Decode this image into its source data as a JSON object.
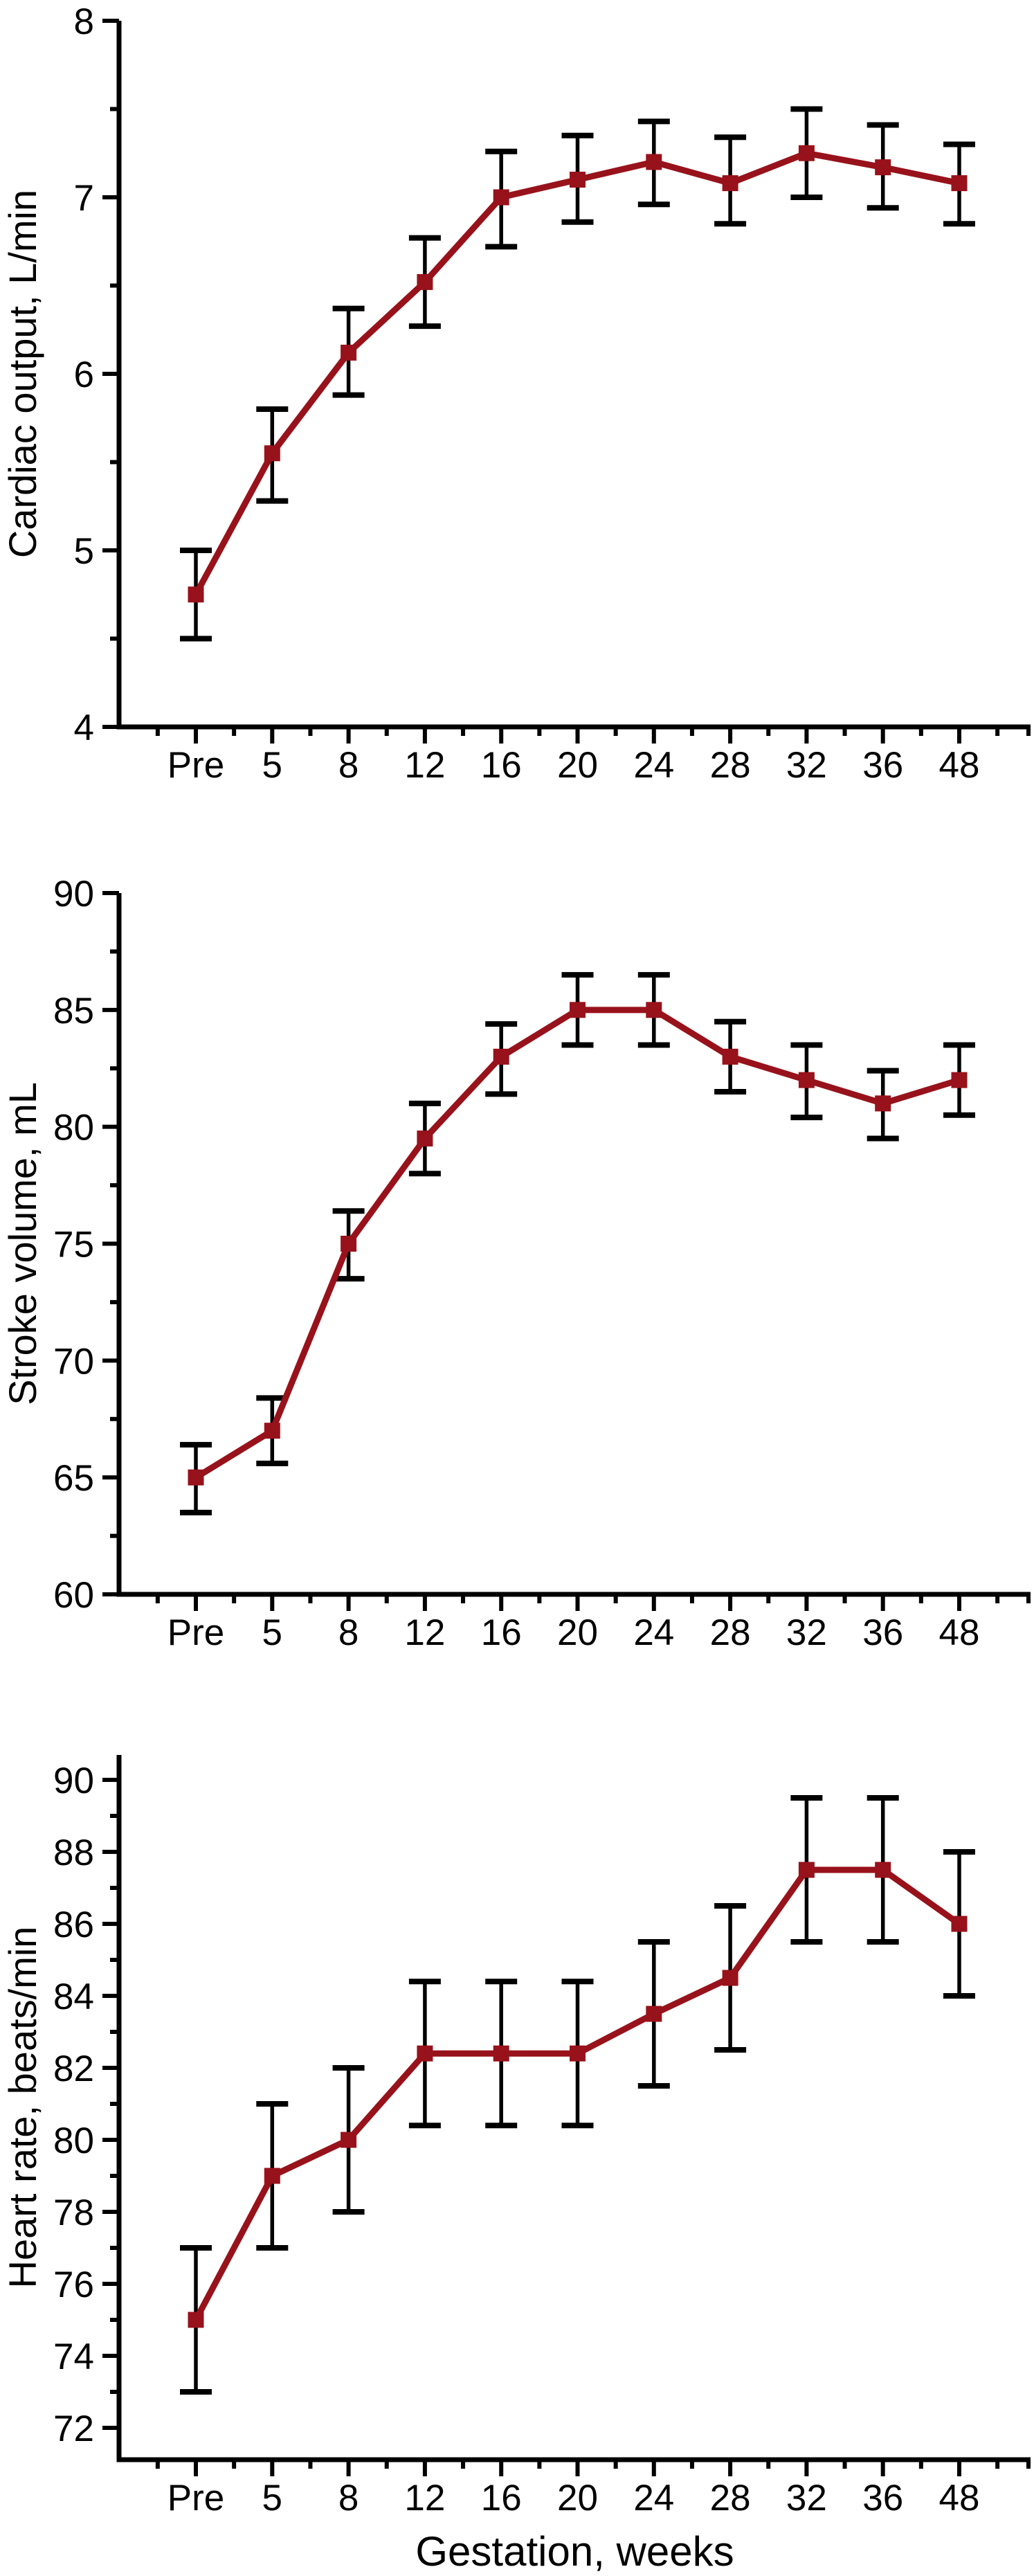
{
  "figure": {
    "x_axis_label": "Gestation, weeks",
    "x_categories": [
      "Pre",
      "5",
      "8",
      "12",
      "16",
      "20",
      "24",
      "28",
      "32",
      "36",
      "48"
    ],
    "line_color": "#98121b",
    "error_bar_color": "#000000",
    "axis_color": "#000000",
    "marker": "filled-square",
    "background": "#ffffff"
  },
  "chart_data": [
    {
      "type": "line",
      "title": "",
      "ylabel": "Cardiac output, L/min",
      "xlabel": "Gestation, weeks",
      "categories": [
        "Pre",
        "5",
        "8",
        "12",
        "16",
        "20",
        "24",
        "28",
        "32",
        "36",
        "48"
      ],
      "yticks": [
        4,
        5,
        6,
        7,
        8
      ],
      "y_minor_tick_step": 0.5,
      "ylim": [
        4,
        8
      ],
      "grid": false,
      "legend_position": "none",
      "series": [
        {
          "name": "Cardiac output",
          "values": [
            4.75,
            5.55,
            6.12,
            6.52,
            7.0,
            7.1,
            7.2,
            7.08,
            7.25,
            7.17,
            7.08
          ],
          "err_low": [
            4.5,
            5.28,
            5.88,
            6.27,
            6.72,
            6.86,
            6.96,
            6.85,
            7.0,
            6.94,
            6.85
          ],
          "err_high": [
            5.0,
            5.8,
            6.37,
            6.77,
            7.26,
            7.35,
            7.43,
            7.34,
            7.5,
            7.41,
            7.3
          ]
        }
      ]
    },
    {
      "type": "line",
      "title": "",
      "ylabel": "Stroke volume, mL",
      "xlabel": "Gestation, weeks",
      "categories": [
        "Pre",
        "5",
        "8",
        "12",
        "16",
        "20",
        "24",
        "28",
        "32",
        "36",
        "48"
      ],
      "yticks": [
        60,
        65,
        70,
        75,
        80,
        85,
        90
      ],
      "y_minor_tick_step": 2.5,
      "ylim": [
        60,
        90
      ],
      "grid": false,
      "legend_position": "none",
      "series": [
        {
          "name": "Stroke volume",
          "values": [
            65,
            67,
            75,
            79.5,
            83,
            85,
            85,
            83,
            82,
            81,
            82
          ],
          "err_low": [
            63.5,
            65.6,
            73.5,
            78,
            81.4,
            83.5,
            83.5,
            81.5,
            80.4,
            79.5,
            80.5
          ],
          "err_high": [
            66.4,
            68.4,
            76.4,
            81,
            84.4,
            86.5,
            86.5,
            84.5,
            83.5,
            82.4,
            83.5
          ]
        }
      ]
    },
    {
      "type": "line",
      "title": "",
      "ylabel": "Heart rate, beats/min",
      "xlabel": "Gestation, weeks",
      "categories": [
        "Pre",
        "5",
        "8",
        "12",
        "16",
        "20",
        "24",
        "28",
        "32",
        "36",
        "48"
      ],
      "yticks": [
        72,
        74,
        76,
        78,
        80,
        82,
        84,
        86,
        88,
        90
      ],
      "y_minor_tick_step": 1,
      "ylim": [
        71,
        91
      ],
      "grid": false,
      "legend_position": "none",
      "series": [
        {
          "name": "Heart rate",
          "values": [
            75,
            79,
            80,
            82.4,
            82.4,
            82.4,
            83.5,
            84.5,
            87.5,
            87.5,
            86
          ],
          "err_low": [
            73,
            77,
            78,
            80.4,
            80.4,
            80.4,
            81.5,
            82.5,
            85.5,
            85.5,
            84
          ],
          "err_high": [
            77,
            81,
            82,
            84.4,
            84.4,
            84.4,
            85.5,
            86.5,
            89.5,
            89.5,
            88
          ]
        }
      ]
    }
  ]
}
